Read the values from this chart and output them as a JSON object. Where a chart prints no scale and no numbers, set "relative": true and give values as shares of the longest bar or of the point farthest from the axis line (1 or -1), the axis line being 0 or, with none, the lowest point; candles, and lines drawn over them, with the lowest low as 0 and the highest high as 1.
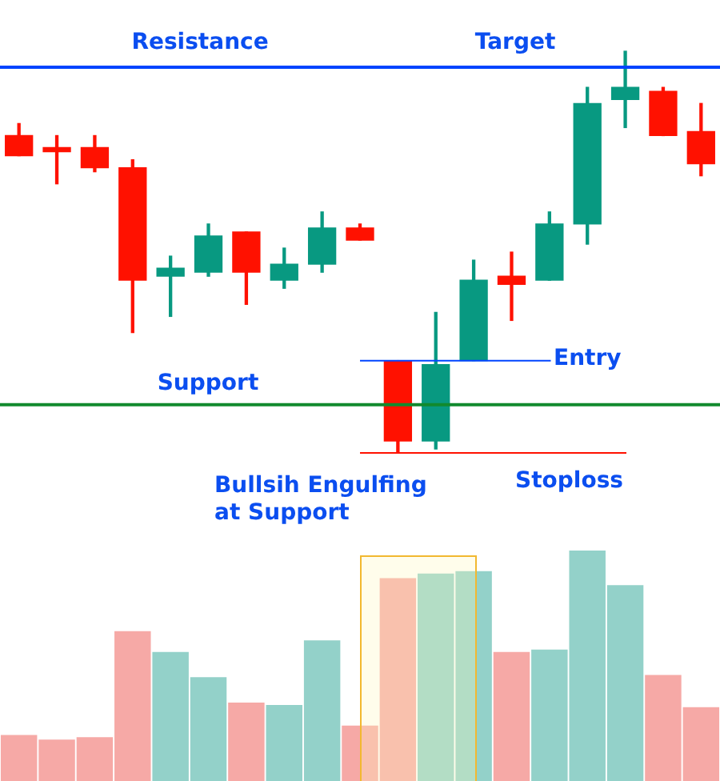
{
  "chart_data": [
    {
      "type": "candlestick",
      "relative": true,
      "categories": [
        null,
        null,
        null,
        null,
        null,
        null,
        null,
        null,
        null,
        null,
        null,
        null,
        null,
        null,
        null,
        null,
        null,
        null,
        null
      ],
      "ohlc": [
        [
          0.79,
          0.82,
          0.74,
          0.74
        ],
        [
          0.76,
          0.79,
          0.67,
          0.75
        ],
        [
          0.76,
          0.79,
          0.7,
          0.71
        ],
        [
          0.71,
          0.73,
          0.3,
          0.43
        ],
        [
          0.44,
          0.49,
          0.34,
          0.46
        ],
        [
          0.45,
          0.57,
          0.44,
          0.54
        ],
        [
          0.55,
          0.55,
          0.37,
          0.45
        ],
        [
          0.43,
          0.51,
          0.41,
          0.47
        ],
        [
          0.47,
          0.6,
          0.45,
          0.56
        ],
        [
          0.56,
          0.57,
          0.53,
          0.53
        ],
        [
          0.23,
          0.23,
          0.0,
          0.03
        ],
        [
          0.03,
          0.35,
          0.01,
          0.22
        ],
        [
          0.23,
          0.48,
          0.23,
          0.43
        ],
        [
          0.44,
          0.5,
          0.33,
          0.42
        ],
        [
          0.43,
          0.6,
          0.43,
          0.57
        ],
        [
          0.57,
          0.91,
          0.52,
          0.87
        ],
        [
          0.88,
          1.0,
          0.81,
          0.91
        ],
        [
          0.9,
          0.91,
          0.79,
          0.79
        ],
        [
          0.8,
          0.87,
          0.69,
          0.72
        ]
      ],
      "colors": [
        "#ff1100",
        "#ff1100",
        "#ff1100",
        "#ff1100",
        "#089981",
        "#089981",
        "#ff1100",
        "#089981",
        "#089981",
        "#ff1100",
        "#ff1100",
        "#089981",
        "#089981",
        "#ff1100",
        "#089981",
        "#089981",
        "#089981",
        "#ff1100",
        "#ff1100"
      ],
      "ref_lines": [
        {
          "axis": "y",
          "value": 0.96,
          "label": "Resistance",
          "color": "#0044ff"
        },
        {
          "axis": "y",
          "value": 0.12,
          "label": "Support",
          "color": "#118a2e"
        },
        {
          "axis": "y",
          "value": 0.23,
          "label": "Entry",
          "color": "#0044ff"
        },
        {
          "axis": "y",
          "value": 0,
          "label": "Stoploss",
          "color": "#ff1100"
        }
      ],
      "annotations": [
        {
          "text": "Target",
          "y": 0.96
        },
        "Bullsih Engulfing\nat Support"
      ]
    },
    {
      "type": "bar",
      "relative": true,
      "categories": [
        null,
        null,
        null,
        null,
        null,
        null,
        null,
        null,
        null,
        null,
        null,
        null,
        null,
        null,
        null,
        null,
        null,
        null,
        null
      ],
      "values": [
        0.2,
        0.18,
        0.19,
        0.65,
        0.56,
        0.45,
        0.34,
        0.33,
        0.61,
        0.24,
        0.88,
        0.9,
        0.91,
        0.56,
        0.57,
        1,
        0.85,
        0.46,
        0.32
      ],
      "colors": [
        "#f6a9a6",
        "#f6a9a6",
        "#f6a9a6",
        "#f6a9a6",
        "#93d1c9",
        "#93d1c9",
        "#f6a9a6",
        "#93d1c9",
        "#93d1c9",
        "#f6a9a6",
        "#f6a9a6",
        "#93d1c9",
        "#93d1c9",
        "#f6a9a6",
        "#93d1c9",
        "#93d1c9",
        "#93d1c9",
        "#f6a9a6",
        "#f6a9a6"
      ]
    }
  ]
}
